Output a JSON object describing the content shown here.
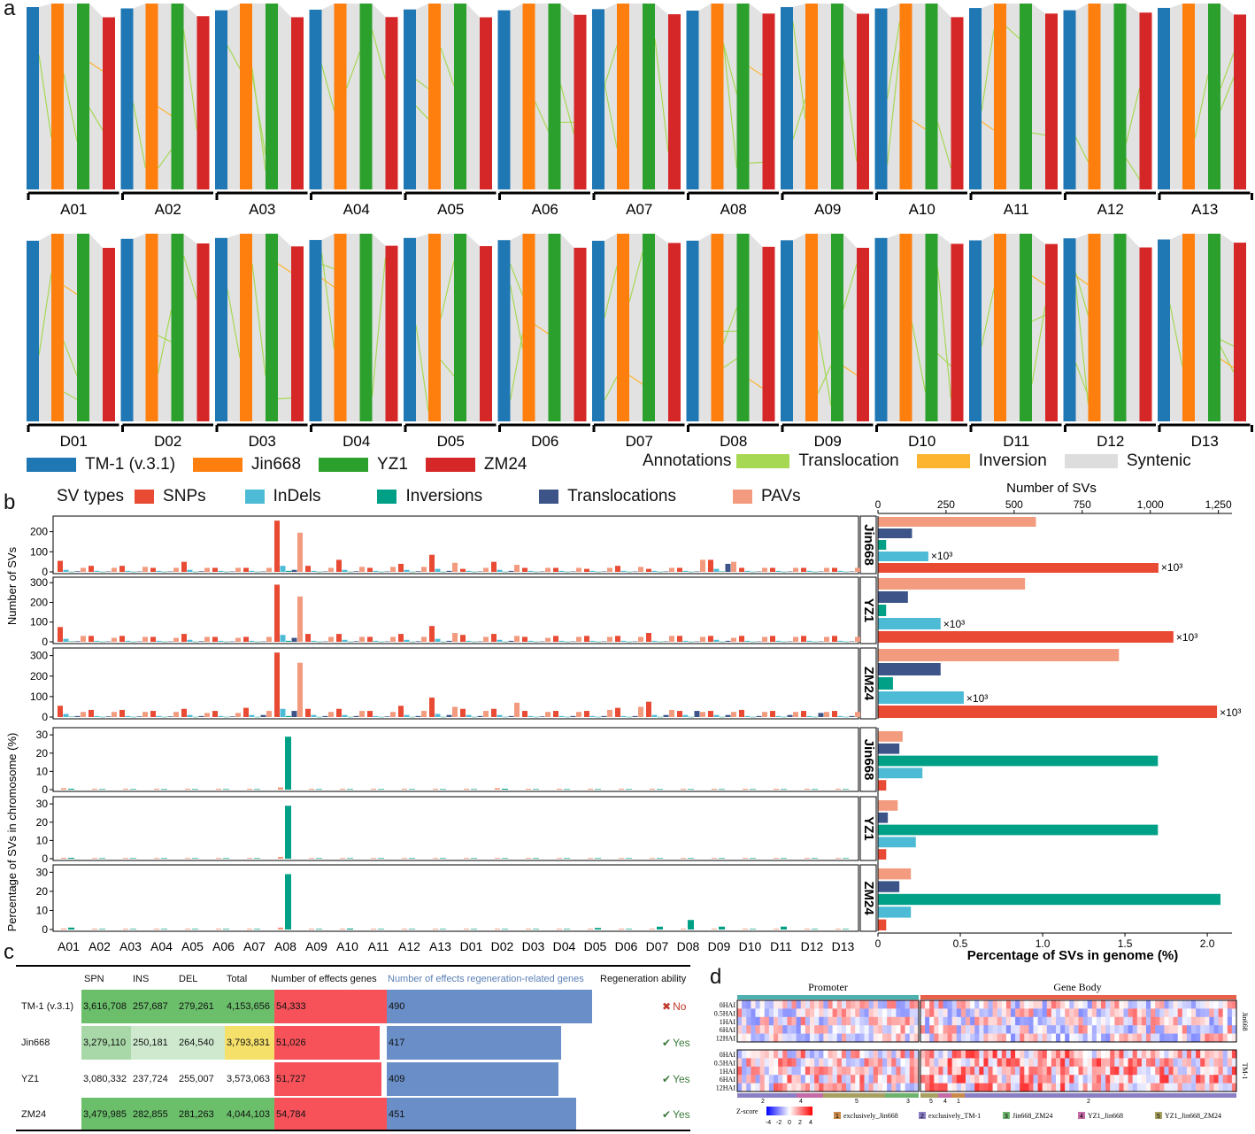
{
  "panel_labels": {
    "a": "a",
    "b": "b",
    "c": "c",
    "d": "d"
  },
  "panel_a": {
    "chromosomes_A": [
      "A01",
      "A02",
      "A03",
      "A04",
      "A05",
      "A06",
      "A07",
      "A08",
      "A09",
      "A10",
      "A11",
      "A12",
      "A13"
    ],
    "chromosomes_D": [
      "D01",
      "D02",
      "D03",
      "D04",
      "D05",
      "D06",
      "D07",
      "D08",
      "D09",
      "D10",
      "D11",
      "D12",
      "D13"
    ],
    "genomes": [
      {
        "name": "TM-1 (v.3.1)",
        "color": "#1f77b4"
      },
      {
        "name": "Jin668",
        "color": "#ff7f0e"
      },
      {
        "name": "YZ1",
        "color": "#2ca02c"
      },
      {
        "name": "ZM24",
        "color": "#d62728"
      }
    ],
    "annotations_title": "Annotations",
    "annotations": [
      {
        "name": "Translocation",
        "color": "#a6d854"
      },
      {
        "name": "Inversion",
        "color": "#fdb42f"
      },
      {
        "name": "Syntenic",
        "color": "#dddddd"
      }
    ]
  },
  "chart_data": [
    {
      "type": "bar",
      "title": "SV types",
      "ylabel": "Number of SVs",
      "categories": [
        "A01",
        "A02",
        "A03",
        "A04",
        "A05",
        "A06",
        "A07",
        "A08",
        "A09",
        "A10",
        "A11",
        "A12",
        "A13",
        "D01",
        "D02",
        "D03",
        "D04",
        "D05",
        "D06",
        "D07",
        "D08",
        "D09",
        "D10",
        "D11",
        "D12",
        "D13"
      ],
      "series_types": [
        {
          "name": "SNPs",
          "color": "#e84a33"
        },
        {
          "name": "InDels",
          "color": "#4dbbd5"
        },
        {
          "name": "Inversions",
          "color": "#00a087"
        },
        {
          "name": "Translocations",
          "color": "#3c5488"
        },
        {
          "name": "PAVs",
          "color": "#f39b7f"
        }
      ],
      "facets": [
        {
          "name": "Jin668",
          "ylim": [
            0,
            260
          ],
          "yticks": [
            0,
            100,
            200
          ],
          "SNPs": [
            55,
            30,
            30,
            20,
            50,
            20,
            20,
            255,
            30,
            60,
            20,
            40,
            85,
            15,
            50,
            20,
            20,
            15,
            30,
            15,
            20,
            60,
            20,
            20,
            20,
            20
          ],
          "InDels": [
            10,
            5,
            5,
            5,
            10,
            5,
            5,
            30,
            5,
            10,
            5,
            10,
            15,
            5,
            10,
            5,
            5,
            5,
            5,
            5,
            5,
            15,
            5,
            5,
            5,
            5
          ],
          "Inversions": [
            1,
            1,
            1,
            1,
            1,
            1,
            1,
            5,
            1,
            1,
            1,
            1,
            1,
            1,
            1,
            1,
            1,
            1,
            1,
            1,
            1,
            2,
            1,
            1,
            1,
            1
          ],
          "Translocations": [
            3,
            2,
            2,
            2,
            3,
            2,
            2,
            10,
            2,
            3,
            2,
            3,
            5,
            2,
            5,
            2,
            2,
            2,
            2,
            2,
            2,
            40,
            2,
            2,
            2,
            2
          ],
          "PAVs": [
            20,
            20,
            25,
            20,
            20,
            20,
            20,
            195,
            20,
            25,
            25,
            25,
            45,
            20,
            35,
            20,
            20,
            20,
            25,
            20,
            60,
            50,
            20,
            20,
            20,
            20
          ]
        },
        {
          "name": "YZ1",
          "ylim": [
            0,
            310
          ],
          "yticks": [
            0,
            100,
            200,
            300
          ],
          "SNPs": [
            75,
            30,
            30,
            25,
            40,
            25,
            25,
            290,
            40,
            40,
            25,
            40,
            80,
            35,
            40,
            25,
            30,
            30,
            30,
            45,
            30,
            30,
            30,
            30,
            30,
            30
          ],
          "InDels": [
            15,
            5,
            5,
            5,
            10,
            5,
            5,
            35,
            5,
            10,
            5,
            10,
            15,
            5,
            10,
            5,
            5,
            5,
            5,
            5,
            5,
            10,
            5,
            5,
            5,
            5
          ],
          "Inversions": [
            2,
            1,
            1,
            1,
            1,
            1,
            1,
            5,
            1,
            1,
            1,
            1,
            1,
            1,
            1,
            1,
            1,
            1,
            1,
            1,
            1,
            1,
            1,
            1,
            1,
            1
          ],
          "Translocations": [
            3,
            2,
            2,
            2,
            3,
            2,
            2,
            20,
            2,
            3,
            2,
            3,
            5,
            2,
            5,
            2,
            2,
            2,
            2,
            2,
            2,
            5,
            2,
            2,
            2,
            2
          ],
          "PAVs": [
            30,
            20,
            25,
            20,
            25,
            20,
            25,
            230,
            25,
            25,
            25,
            25,
            45,
            25,
            30,
            20,
            25,
            25,
            25,
            30,
            25,
            20,
            25,
            25,
            25,
            25
          ]
        },
        {
          "name": "ZM24",
          "ylim": [
            0,
            320
          ],
          "yticks": [
            0,
            100,
            200,
            300
          ],
          "SNPs": [
            55,
            35,
            35,
            30,
            40,
            30,
            45,
            315,
            40,
            40,
            30,
            55,
            95,
            40,
            40,
            30,
            30,
            30,
            45,
            75,
            30,
            30,
            35,
            30,
            30,
            30
          ],
          "InDels": [
            15,
            5,
            5,
            5,
            10,
            5,
            10,
            40,
            10,
            10,
            5,
            10,
            15,
            10,
            10,
            5,
            5,
            5,
            5,
            10,
            10,
            10,
            5,
            5,
            5,
            5
          ],
          "Inversions": [
            2,
            1,
            1,
            1,
            1,
            1,
            1,
            5,
            1,
            1,
            1,
            1,
            1,
            1,
            1,
            1,
            1,
            1,
            1,
            1,
            1,
            1,
            1,
            1,
            1,
            1
          ],
          "Translocations": [
            5,
            3,
            3,
            3,
            5,
            3,
            10,
            30,
            5,
            5,
            3,
            5,
            10,
            5,
            5,
            3,
            5,
            5,
            5,
            10,
            30,
            10,
            5,
            10,
            20,
            5
          ],
          "PAVs": [
            25,
            25,
            25,
            25,
            20,
            20,
            30,
            265,
            25,
            30,
            25,
            30,
            50,
            30,
            70,
            25,
            25,
            35,
            50,
            35,
            25,
            25,
            25,
            25,
            25,
            25
          ]
        }
      ]
    },
    {
      "type": "bar",
      "ylabel": "Percentage of SVs in chromosome (%)",
      "categories": [
        "A01",
        "A02",
        "A03",
        "A04",
        "A05",
        "A06",
        "A07",
        "A08",
        "A09",
        "A10",
        "A11",
        "A12",
        "A13",
        "D01",
        "D02",
        "D03",
        "D04",
        "D05",
        "D06",
        "D07",
        "D08",
        "D09",
        "D10",
        "D11",
        "D12",
        "D13"
      ],
      "facets": [
        {
          "name": "Jin668",
          "ylim": [
            0,
            32
          ],
          "yticks": [
            0,
            10,
            20,
            30
          ],
          "Inversions": [
            0.5,
            0.3,
            0.3,
            0.3,
            0.3,
            0.3,
            0.3,
            29,
            0.3,
            0.3,
            0.3,
            0.3,
            0.3,
            0.3,
            0.5,
            0.3,
            0.3,
            0.3,
            0.3,
            0.3,
            0.3,
            0.3,
            0.3,
            0.3,
            0.3,
            0.3
          ],
          "Others": [
            0.8,
            0.5,
            0.5,
            0.5,
            0.5,
            0.5,
            0.5,
            1.2,
            0.5,
            0.5,
            0.5,
            0.5,
            0.5,
            0.5,
            0.8,
            0.5,
            0.5,
            0.5,
            0.5,
            0.5,
            0.5,
            0.5,
            0.5,
            0.5,
            0.5,
            0.5
          ]
        },
        {
          "name": "YZ1",
          "ylim": [
            0,
            32
          ],
          "yticks": [
            0,
            10,
            20,
            30
          ],
          "Inversions": [
            0.5,
            0.3,
            0.3,
            0.3,
            0.3,
            0.3,
            0.3,
            29,
            0.3,
            0.3,
            0.3,
            0.3,
            0.3,
            0.3,
            0.3,
            0.3,
            0.3,
            0.3,
            0.3,
            0.3,
            0.3,
            0.3,
            0.3,
            0.3,
            0.3,
            0.3
          ],
          "Others": [
            0.5,
            0.4,
            0.4,
            0.4,
            0.4,
            0.4,
            0.4,
            1,
            0.4,
            0.4,
            0.4,
            0.4,
            0.4,
            0.4,
            0.4,
            0.4,
            0.4,
            0.4,
            0.4,
            0.4,
            0.4,
            0.4,
            0.4,
            0.4,
            0.4,
            0.4
          ]
        },
        {
          "name": "ZM24",
          "ylim": [
            0,
            32
          ],
          "yticks": [
            0,
            10,
            20,
            30
          ],
          "Inversions": [
            1,
            0.3,
            0.3,
            0.3,
            0.3,
            0.3,
            0.3,
            29,
            0.3,
            0.5,
            0.3,
            0.3,
            0.3,
            0.3,
            0.3,
            0.3,
            0.3,
            0.8,
            0.3,
            1.5,
            5,
            1.5,
            0.3,
            1.5,
            0.3,
            0.3
          ],
          "Others": [
            0.5,
            0.4,
            0.4,
            0.4,
            0.4,
            0.4,
            0.4,
            1,
            0.4,
            0.4,
            0.4,
            0.4,
            0.4,
            0.4,
            0.4,
            0.4,
            0.4,
            0.4,
            0.4,
            0.4,
            0.4,
            0.4,
            0.4,
            0.4,
            0.4,
            0.4
          ]
        }
      ]
    },
    {
      "type": "bar",
      "orientation": "horizontal",
      "xlabel": "Number of SVs",
      "xlim": [
        0,
        1300
      ],
      "xticks": [
        "0",
        "250",
        "500",
        "750",
        "1,000",
        "1,250"
      ],
      "facets": [
        {
          "name": "Jin668",
          "PAVs": 580,
          "Translocations": 125,
          "Inversions": 30,
          "InDels": 185,
          "SNPs": 1030,
          "InDels_note": "×10³",
          "SNPs_note": "×10³"
        },
        {
          "name": "YZ1",
          "PAVs": 540,
          "Translocations": 110,
          "Inversions": 30,
          "InDels": 230,
          "SNPs": 1085,
          "InDels_note": "×10³",
          "SNPs_note": "×10³"
        },
        {
          "name": "ZM24",
          "PAVs": 885,
          "Translocations": 230,
          "Inversions": 55,
          "InDels": 315,
          "SNPs": 1245,
          "InDels_note": "×10³",
          "SNPs_note": "×10³"
        }
      ]
    },
    {
      "type": "bar",
      "orientation": "horizontal",
      "xlabel": "Percentage of SVs in genome (%)",
      "xlim": [
        0,
        2.15
      ],
      "xticks": [
        "0",
        "0.5",
        "1.0",
        "1.5",
        "2.0"
      ],
      "facets": [
        {
          "name": "Jin668",
          "PAVs": 0.15,
          "Translocations": 0.13,
          "Inversions": 1.7,
          "InDels": 0.27,
          "SNPs": 0.05
        },
        {
          "name": "YZ1",
          "PAVs": 0.12,
          "Translocations": 0.06,
          "Inversions": 1.7,
          "InDels": 0.23,
          "SNPs": 0.05
        },
        {
          "name": "ZM24",
          "PAVs": 0.2,
          "Translocations": 0.13,
          "Inversions": 2.08,
          "InDels": 0.2,
          "SNPs": 0.05
        }
      ]
    }
  ],
  "panel_c": {
    "headers": [
      "SPN",
      "INS",
      "DEL",
      "Total",
      "Number of effects genes",
      "Number of effects regeneration-related genes",
      "Regeneration ability"
    ],
    "rows": [
      {
        "name": "TM-1 (v.3.1)",
        "spn": "3,616,708",
        "ins": "257,687",
        "del": "279,261",
        "total": "4,153,656",
        "genes": "54,333",
        "regen": "490",
        "ability": "No",
        "genes_val": 54333,
        "regen_val": 490
      },
      {
        "name": "Jin668",
        "spn": "3,279,110",
        "ins": "250,181",
        "del": "264,540",
        "total": "3,793,831",
        "genes": "51,026",
        "regen": "417",
        "ability": "Yes",
        "genes_val": 51026,
        "regen_val": 417
      },
      {
        "name": "YZ1",
        "spn": "3,080,332",
        "ins": "237,724",
        "del": "255,007",
        "total": "3,573,063",
        "genes": "51,727",
        "regen": "409",
        "ability": "Yes",
        "genes_val": 51727,
        "regen_val": 409
      },
      {
        "name": "ZM24",
        "spn": "3,479,985",
        "ins": "282,855",
        "del": "281,263",
        "total": "4,044,103",
        "genes": "54,784",
        "regen": "451",
        "ability": "Yes",
        "genes_val": 54784,
        "regen_val": 451
      }
    ],
    "no_mark": "✖",
    "yes_mark": "✔"
  },
  "panel_d": {
    "promoter": "Promoter",
    "gene_body": "Gene Body",
    "row_labels": [
      "0HAI",
      "0.5HAI",
      "1HAI",
      "6HAI",
      "12HAI"
    ],
    "group_labels": [
      "Jin668",
      "TM-1"
    ],
    "zscore_label": "Z-score",
    "zscore_ticks": [
      "-4",
      "-2",
      "0",
      "2",
      "4"
    ],
    "cluster_numbers_promoter": [
      "2",
      "4",
      "5",
      "3"
    ],
    "cluster_numbers_body": [
      "5",
      "4",
      "1",
      "2"
    ],
    "clusters": [
      {
        "num": "1",
        "name": "exclusively_Jin668",
        "color": "#c88a4a"
      },
      {
        "num": "2",
        "name": "exclusively_TM-1",
        "color": "#8a7fc4"
      },
      {
        "num": "3",
        "name": "Jin668_ZM24",
        "color": "#6db36d"
      },
      {
        "num": "4",
        "name": "YZ1_Jin668",
        "color": "#c46aa6"
      },
      {
        "num": "5",
        "name": "YZ1_Jin668_ZM24",
        "color": "#a8a060"
      }
    ]
  }
}
